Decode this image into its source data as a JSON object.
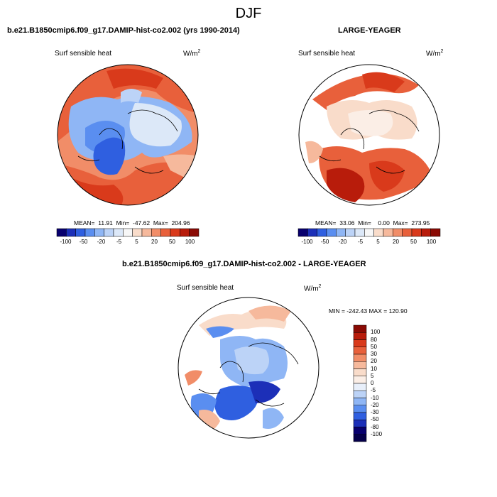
{
  "page_title": "DJF",
  "panels": [
    {
      "title": "b.e21.B1850cmip6.f09_g17.DAMIP-hist-co2.002 (yrs 1990-2014)",
      "variable": "Surf sensible heat",
      "units_base": "W/m",
      "units_exp": "2",
      "stats": "MEAN=  11.91  Min=  -47.62  Max=  204.96"
    },
    {
      "title": "LARGE-YEAGER",
      "variable": "Surf sensible heat",
      "units_base": "W/m",
      "units_exp": "2",
      "stats": "MEAN=  33.06  Min=    0.00  Max=  273.95"
    },
    {
      "title": "b.e21.B1850cmip6.f09_g17.DAMIP-hist-co2.002 - LARGE-YEAGER",
      "variable": "Surf sensible heat",
      "units_base": "W/m",
      "units_exp": "2",
      "stats": "MIN = -242.43 MAX = 120.90"
    }
  ],
  "colorbar_abs": {
    "tick_labels": [
      "-100",
      "-50",
      "-20",
      "-5",
      "5",
      "20",
      "50",
      "100"
    ],
    "colors": [
      "#08006e",
      "#1c2fb8",
      "#2f5fe0",
      "#5a8ef0",
      "#8fb6f5",
      "#bcd3f7",
      "#dce8f8",
      "#f7f7f7",
      "#f9dcca",
      "#f6b99c",
      "#f18d68",
      "#e8603b",
      "#d93a1b",
      "#b81c0b",
      "#8a0a04"
    ]
  },
  "colorbar_diff": {
    "tick_labels": [
      "100",
      "80",
      "50",
      "30",
      "20",
      "10",
      "5",
      "0",
      "-5",
      "-10",
      "-20",
      "-30",
      "-50",
      "-80",
      "-100"
    ],
    "colors": [
      "#8a0a04",
      "#b81c0b",
      "#d93a1b",
      "#e8603b",
      "#f18d68",
      "#f6b99c",
      "#f9dcca",
      "#fbeee6",
      "#e8effa",
      "#bcd3f7",
      "#8fb6f5",
      "#5a8ef0",
      "#2f5fe0",
      "#1c2fb8",
      "#08006e",
      "#05004a"
    ]
  }
}
